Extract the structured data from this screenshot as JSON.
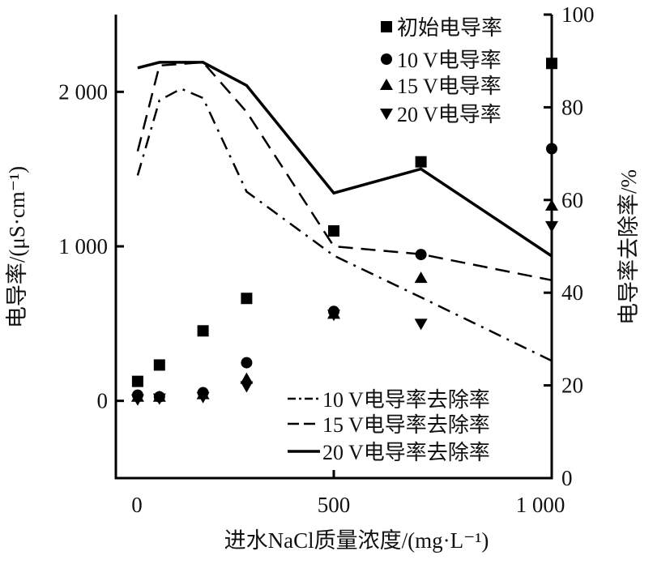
{
  "chart_data": {
    "type": "scatter+line",
    "xlabel": "进水NaCl质量浓度/(mg·L⁻¹)",
    "ylabel_left": "电导率/(μS·cm⁻¹)",
    "ylabel_right": "电导率去除率/%",
    "xlim": [
      0,
      1000
    ],
    "ylim_left": [
      -500,
      2500
    ],
    "ylim_right": [
      0,
      100
    ],
    "x_ticks": [
      {
        "value": 0,
        "label": "0"
      },
      {
        "value": 500,
        "label": "500"
      },
      {
        "value": 1000,
        "label": "1 000"
      }
    ],
    "y_left_ticks": [
      {
        "value": 0,
        "label": "0"
      },
      {
        "value": 1000,
        "label": "1 000"
      },
      {
        "value": 2000,
        "label": "2 000"
      }
    ],
    "y_right_ticks": [
      {
        "value": 0,
        "label": "0"
      },
      {
        "value": 20,
        "label": "20"
      },
      {
        "value": 40,
        "label": "40"
      },
      {
        "value": 60,
        "label": "60"
      },
      {
        "value": 80,
        "label": "80"
      },
      {
        "value": 100,
        "label": "100"
      }
    ],
    "grid": false,
    "x": [
      50,
      100,
      200,
      300,
      500,
      700,
      1000
    ],
    "scatter_series": [
      {
        "name": "初始电导率",
        "marker": "square",
        "axis": "left",
        "values": [
          126,
          232,
          453,
          663,
          1100,
          1547,
          2184
        ]
      },
      {
        "name": "10 V电导率",
        "marker": "circle",
        "axis": "left",
        "values": [
          37,
          26,
          53,
          247,
          579,
          947,
          1632
        ]
      },
      {
        "name": "15 V电导率",
        "marker": "triangle-up",
        "axis": "left",
        "values": [
          26,
          26,
          42,
          142,
          563,
          795,
          1263
        ]
      },
      {
        "name": "20 V电导率",
        "marker": "triangle-down",
        "axis": "left",
        "values": [
          10,
          16,
          26,
          95,
          558,
          500,
          1132
        ]
      }
    ],
    "line_series": [
      {
        "name": "10 V电导率去除率",
        "style": "dash-dot",
        "axis": "right",
        "x": [
          50,
          100,
          150,
          200,
          300,
          500,
          700,
          1000
        ],
        "values": [
          65.3,
          81.5,
          84,
          82,
          61.8,
          48,
          39,
          25.3
        ]
      },
      {
        "name": "15 V电导率去除率",
        "style": "dashed",
        "axis": "right",
        "x": [
          50,
          100,
          200,
          300,
          500,
          700,
          1000
        ],
        "values": [
          70.5,
          89,
          89.7,
          79,
          50,
          48.3,
          42.7
        ]
      },
      {
        "name": "20 V电导率去除率",
        "style": "solid",
        "axis": "right",
        "x": [
          50,
          100,
          200,
          300,
          500,
          700,
          1000
        ],
        "values": [
          88.5,
          89.7,
          89.7,
          84.7,
          61.5,
          66.7,
          47.9
        ]
      }
    ],
    "legend_placement": "top-right (markers), bottom-right (lines)"
  }
}
